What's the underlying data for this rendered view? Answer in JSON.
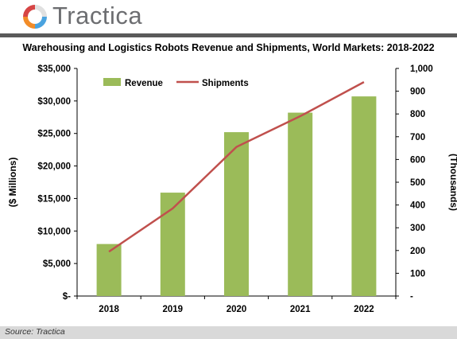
{
  "header": {
    "logo_text": "Tractica",
    "logo_icon": "tractica-logo-icon"
  },
  "footer": {
    "source": "Source: Tractica"
  },
  "colors": {
    "revenue_bar": "#9bbb59",
    "shipments_line": "#c0504d",
    "divider": "#5a5a5a",
    "source_bar": "#d9d9d9"
  },
  "chart_data": {
    "type": "bar",
    "title": "Warehousing and Logistics Robots Revenue and Shipments, World Markets: 2018-2022",
    "categories": [
      "2018",
      "2019",
      "2020",
      "2021",
      "2022"
    ],
    "series": [
      {
        "name": "Revenue",
        "type": "bar",
        "axis": "left",
        "values": [
          8000,
          15900,
          25200,
          28200,
          30700
        ]
      },
      {
        "name": "Shipments",
        "type": "line",
        "axis": "right",
        "values": [
          195,
          385,
          655,
          790,
          940
        ]
      }
    ],
    "ylabel": "($ Millions)",
    "ylim": [
      0,
      35000
    ],
    "y_ticks": [
      0,
      5000,
      10000,
      15000,
      20000,
      25000,
      30000,
      35000
    ],
    "y_tick_labels": [
      "$-",
      "$5,000",
      "$10,000",
      "$15,000",
      "$20,000",
      "$25,000",
      "$30,000",
      "$35,000"
    ],
    "y2label": "(Thousands)",
    "y2lim": [
      0,
      1000
    ],
    "y2_ticks": [
      0,
      100,
      200,
      300,
      400,
      500,
      600,
      700,
      800,
      900,
      1000
    ],
    "y2_tick_labels": [
      "-",
      "100",
      "200",
      "300",
      "400",
      "500",
      "600",
      "700",
      "800",
      "900",
      "1,000"
    ],
    "grid": false,
    "legend_position": "top-left"
  }
}
